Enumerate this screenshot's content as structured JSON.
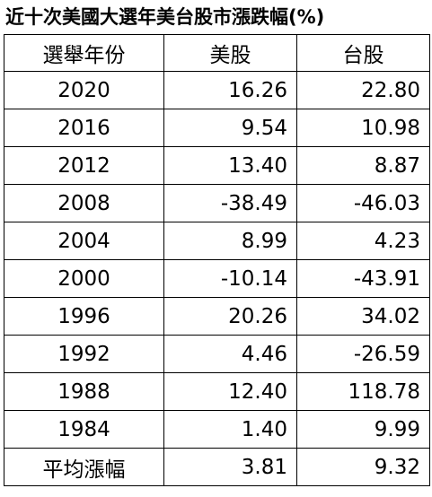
{
  "title": "近十次美國大選年美台股市漲跌幅(%)",
  "table": {
    "header": [
      "選舉年份",
      "美股",
      "台股"
    ],
    "rows": [
      [
        "2020",
        "16.26",
        "22.80"
      ],
      [
        "2016",
        "9.54",
        "10.98"
      ],
      [
        "2012",
        "13.40",
        "8.87"
      ],
      [
        "2008",
        "-38.49",
        "-46.03"
      ],
      [
        "2004",
        "8.99",
        "4.23"
      ],
      [
        "2000",
        "-10.14",
        "-43.91"
      ],
      [
        "1996",
        "20.26",
        "34.02"
      ],
      [
        "1992",
        "4.46",
        "-26.59"
      ],
      [
        "1988",
        "12.40",
        "118.78"
      ],
      [
        "1984",
        "1.40",
        "9.99"
      ],
      [
        "平均漲幅",
        "3.81",
        "9.32"
      ]
    ]
  }
}
